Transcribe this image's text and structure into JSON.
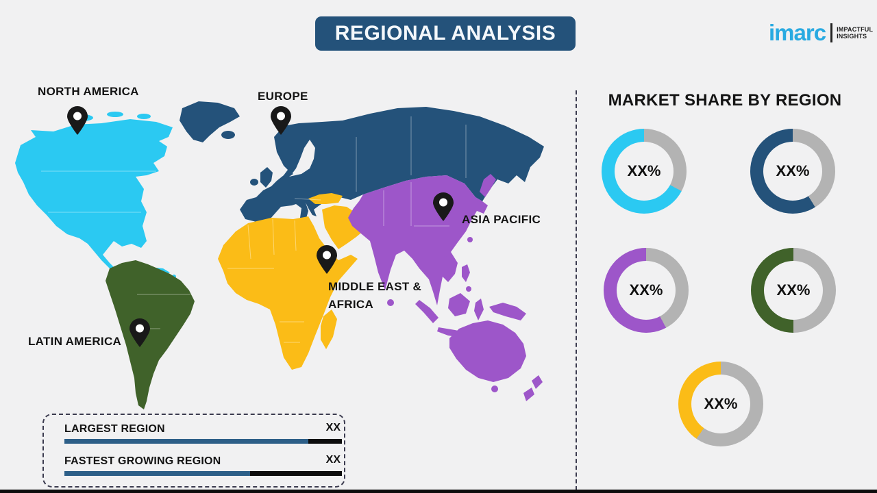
{
  "header": {
    "title": "REGIONAL ANALYSIS",
    "bar_color": "#24527a"
  },
  "logo": {
    "brand": "imarc",
    "tagline1": "IMPACTFUL",
    "tagline2": "INSIGHTS",
    "brand_color": "#29aae1"
  },
  "map": {
    "labels": {
      "north_america": "NORTH AMERICA",
      "europe": "EUROPE",
      "asia_pacific": "ASIA PACIFIC",
      "mea_line1": "MIDDLE EAST &",
      "mea_line2": "AFRICA",
      "latin_america": "LATIN AMERICA"
    },
    "colors": {
      "north_america": "#2bc9f2",
      "europe": "#24527a",
      "asia_pacific": "#9d56c9",
      "middle_east_africa": "#fbbc17",
      "latin_america": "#40622a",
      "pin": "#191919"
    }
  },
  "market_share": {
    "title": "MARKET SHARE BY REGION",
    "track_color": "#b3b3b3",
    "donuts": [
      {
        "name": "north-america",
        "label": "XX%",
        "color": "#2bc9f2",
        "track_deg": 118
      },
      {
        "name": "europe",
        "label": "XX%",
        "color": "#24527a",
        "track_deg": 148
      },
      {
        "name": "asia-pacific",
        "label": "XX%",
        "color": "#9d56c9",
        "track_deg": 152
      },
      {
        "name": "latin-america",
        "label": "XX%",
        "color": "#40622a",
        "track_deg": 180
      },
      {
        "name": "middle-east-africa",
        "label": "XX%",
        "color": "#fbbc17",
        "track_deg": 215
      }
    ]
  },
  "legend": {
    "rows": [
      {
        "label": "LARGEST REGION",
        "value": "XX",
        "fill_pct": 88
      },
      {
        "label": "FASTEST GROWING REGION",
        "value": "XX",
        "fill_pct": 67
      }
    ],
    "fill_color": "#2d5f88",
    "rest_color": "#0d0d0d"
  },
  "chart_data": {
    "type": "pie",
    "title": "MARKET SHARE BY REGION",
    "note": "values shown as placeholders on the infographic",
    "items": [
      {
        "region": "North America",
        "value_label": "XX%",
        "color": "#2bc9f2",
        "ring_filled_fraction": 0.67
      },
      {
        "region": "Europe",
        "value_label": "XX%",
        "color": "#24527a",
        "ring_filled_fraction": 0.59
      },
      {
        "region": "Asia Pacific",
        "value_label": "XX%",
        "color": "#9d56c9",
        "ring_filled_fraction": 0.58
      },
      {
        "region": "Latin America",
        "value_label": "XX%",
        "color": "#40622a",
        "ring_filled_fraction": 0.5
      },
      {
        "region": "Middle East & Africa",
        "value_label": "XX%",
        "color": "#fbbc17",
        "ring_filled_fraction": 0.4
      }
    ],
    "bars": [
      {
        "label": "LARGEST REGION",
        "value_label": "XX",
        "fill_fraction": 0.88
      },
      {
        "label": "FASTEST GROWING REGION",
        "value_label": "XX",
        "fill_fraction": 0.67
      }
    ]
  }
}
